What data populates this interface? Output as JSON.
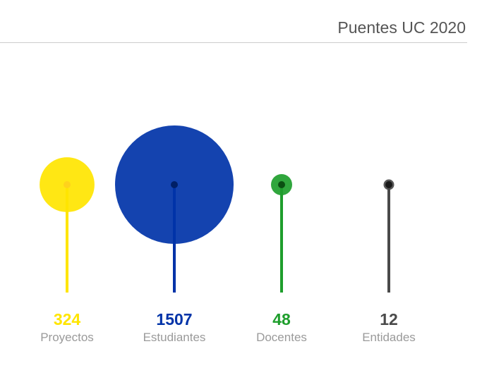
{
  "header": {
    "title": "Puentes UC 2020"
  },
  "chart_data": {
    "type": "bubble-lollipop",
    "title": "Puentes UC 2020",
    "categories": [
      "Proyectos",
      "Estudiantes",
      "Docentes",
      "Entidades"
    ],
    "values": [
      324,
      1507,
      48,
      12
    ],
    "colors": [
      "#FFE500",
      "#0033A8",
      "#1E9E2C",
      "#4A4A4A"
    ],
    "dot_colors": [
      "#FFD21C",
      "#001F66",
      "#0B4F12",
      "#1A1A1A"
    ]
  }
}
